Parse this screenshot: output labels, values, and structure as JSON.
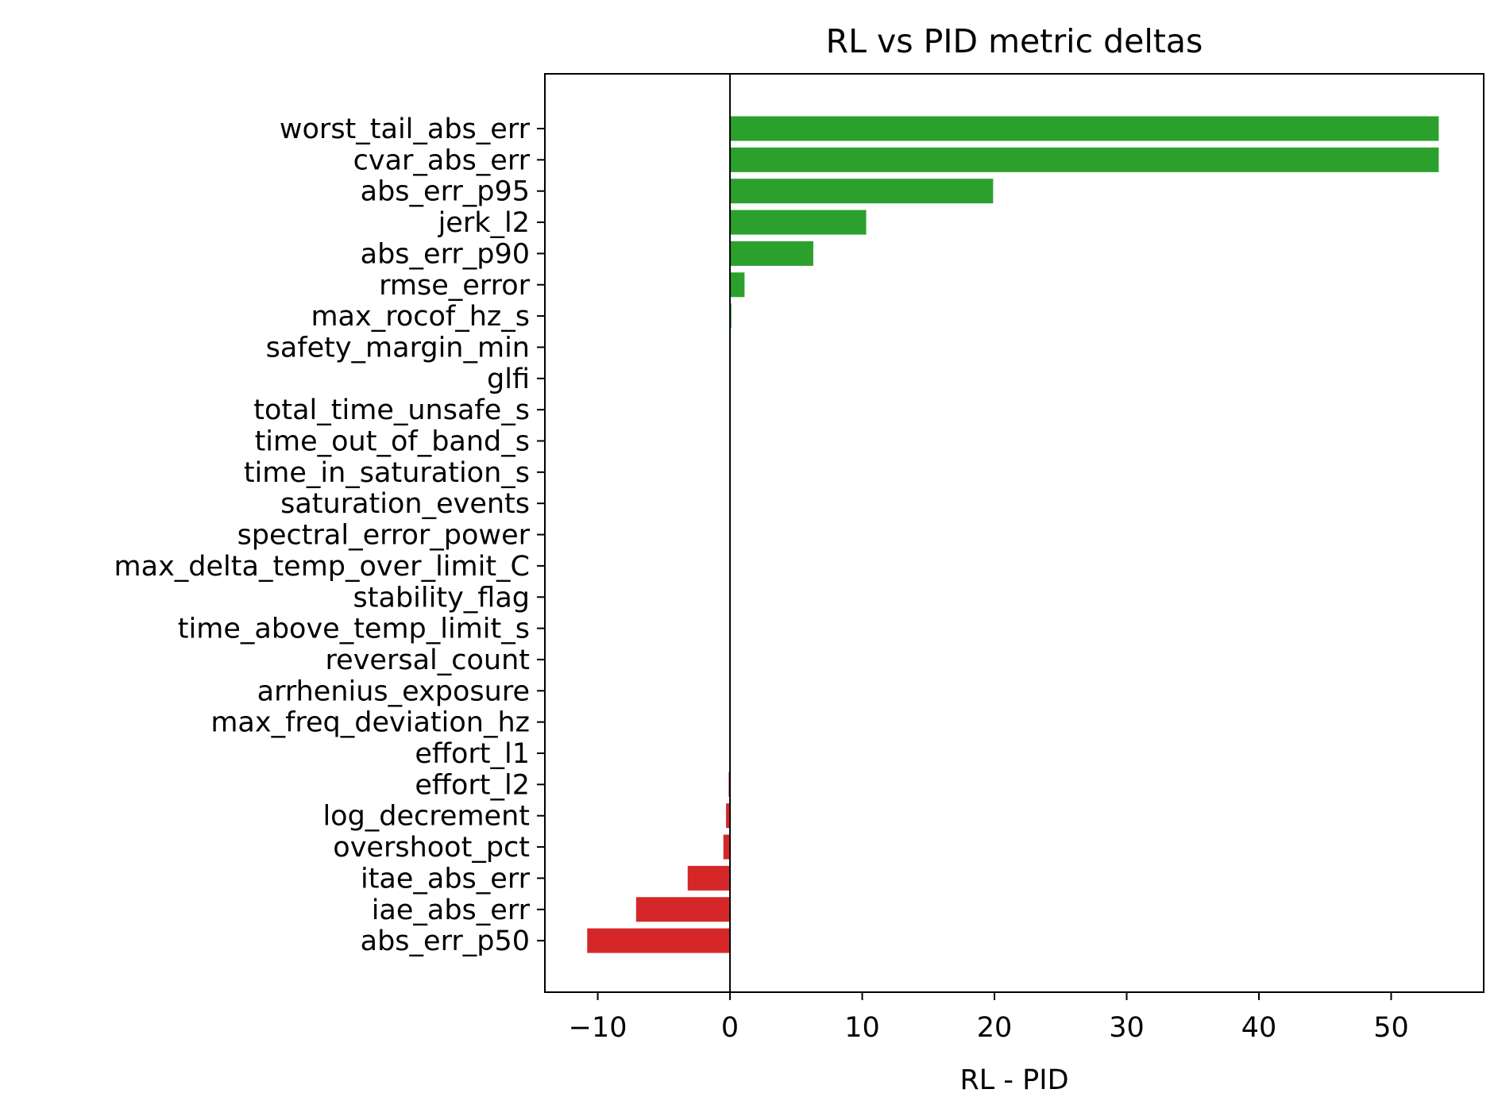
{
  "chart_data": {
    "type": "bar",
    "orientation": "horizontal",
    "title": "RL vs PID metric deltas",
    "xlabel": "RL - PID",
    "ylabel": "",
    "xlim": [
      -14,
      57
    ],
    "xticks": [
      -10,
      0,
      10,
      20,
      30,
      40,
      50
    ],
    "xtick_labels": [
      "−10",
      "0",
      "10",
      "20",
      "30",
      "40",
      "50"
    ],
    "zero_line": true,
    "grid": false,
    "legend": "none",
    "colors": {
      "positive": "#2ca02c",
      "negative": "#d62728",
      "axis": "#000000"
    },
    "categories": [
      "worst_tail_abs_err",
      "cvar_abs_err",
      "abs_err_p95",
      "jerk_l2",
      "abs_err_p90",
      "rmse_error",
      "max_rocof_hz_s",
      "safety_margin_min",
      "glfi",
      "total_time_unsafe_s",
      "time_out_of_band_s",
      "time_in_saturation_s",
      "saturation_events",
      "spectral_error_power",
      "max_delta_temp_over_limit_C",
      "stability_flag",
      "time_above_temp_limit_s",
      "reversal_count",
      "arrhenius_exposure",
      "max_freq_deviation_hz",
      "effort_l1",
      "effort_l2",
      "log_decrement",
      "overshoot_pct",
      "itae_abs_err",
      "iae_abs_err",
      "abs_err_p50"
    ],
    "values": [
      53.6,
      53.6,
      19.9,
      10.3,
      6.3,
      1.1,
      0.1,
      0.0,
      0.0,
      0.0,
      0.0,
      0.0,
      0.0,
      0.0,
      0.0,
      0.0,
      0.0,
      0.0,
      0.0,
      0.0,
      0.0,
      -0.1,
      -0.3,
      -0.5,
      -3.2,
      -7.1,
      -10.8
    ]
  }
}
